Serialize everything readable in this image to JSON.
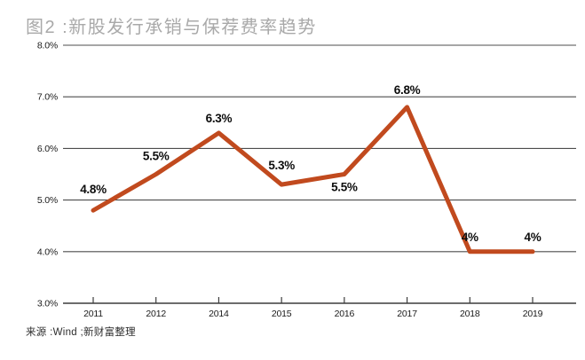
{
  "title": "图2 :新股发行承销与保荐费率趋势",
  "source": "来源 :Wind ;新财富整理",
  "colors": {
    "line": "#c14a1e",
    "grid": "#4d4d4d",
    "axis": "#3c3c3c",
    "title_text": "#a9a9a9",
    "tick_text": "#1a1a1a",
    "data_label_text": "#0d0d0d"
  },
  "chart_data": {
    "type": "line",
    "title": "图2 :新股发行承销与保荐费率趋势",
    "categories": [
      "2011",
      "2012",
      "2014",
      "2015",
      "2016",
      "2017",
      "2018",
      "2019"
    ],
    "values": [
      4.8,
      5.5,
      6.3,
      5.3,
      5.5,
      6.8,
      4,
      4
    ],
    "point_labels": [
      "4.8%",
      "5.5%",
      "6.3%",
      "5.3%",
      "5.5%",
      "6.8%",
      "4%",
      "4%"
    ],
    "label_offsets": [
      -23,
      -20,
      -16,
      -21,
      15,
      -19,
      -16,
      -16
    ],
    "xlabel": "",
    "ylabel": "",
    "ylim": [
      3,
      8
    ],
    "yticks": [
      8,
      7,
      6,
      5,
      4,
      3
    ],
    "ytick_labels": [
      "8.0%",
      "7.0%",
      "6.0%",
      "5.0%",
      "4.0%",
      "3.0%"
    ],
    "grid": true,
    "legend": false
  }
}
